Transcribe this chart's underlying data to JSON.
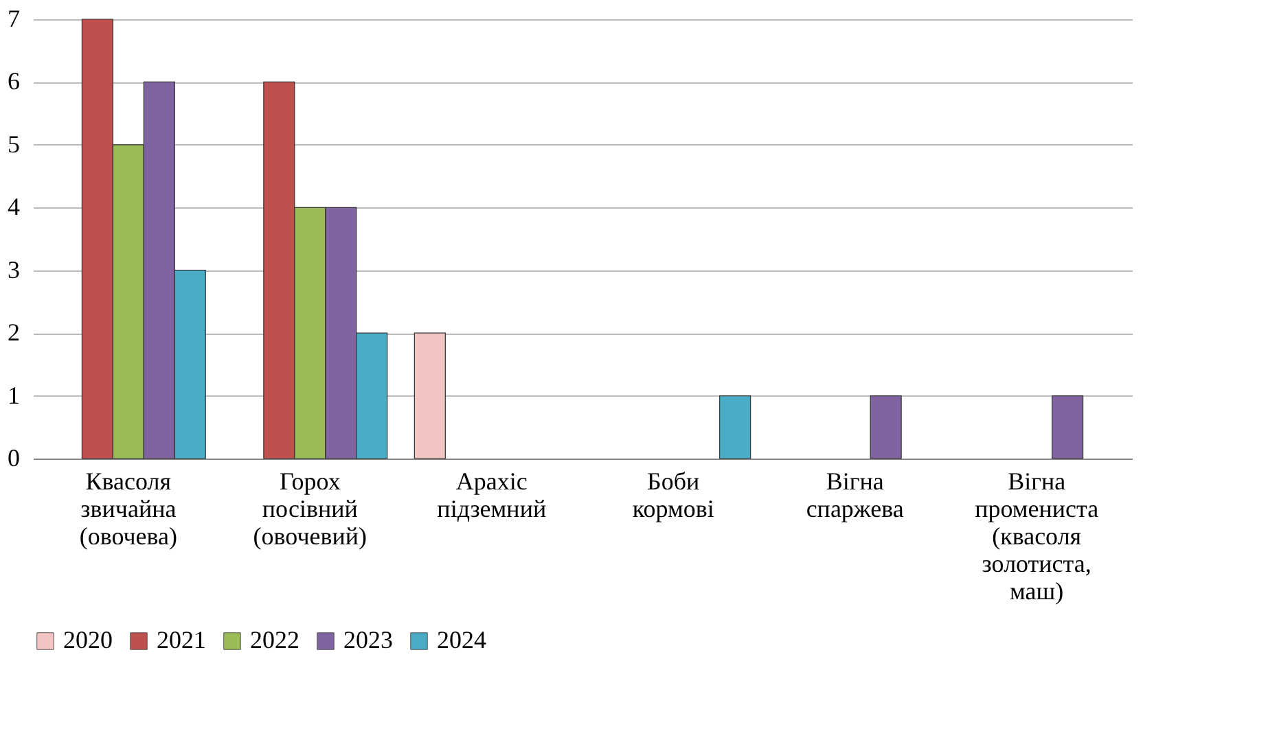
{
  "chart_data": {
    "type": "bar",
    "categories": [
      "Квасоля звичайна (овочева)",
      "Горох посівний (овочевий)",
      "Арахіс підземний",
      "Боби кормові",
      "Вігна спаржева",
      "Вігна промениста (квасоля золотиста, маш)"
    ],
    "series": [
      {
        "name": "2020",
        "color": "#f2c4c4",
        "values": [
          null,
          null,
          2,
          null,
          null,
          null
        ]
      },
      {
        "name": "2021",
        "color": "#c0504d",
        "values": [
          7,
          6,
          null,
          null,
          null,
          null
        ]
      },
      {
        "name": "2022",
        "color": "#9bbb59",
        "values": [
          5,
          4,
          null,
          null,
          null,
          null
        ]
      },
      {
        "name": "2023",
        "color": "#8064a2",
        "values": [
          6,
          4,
          null,
          null,
          1,
          1
        ]
      },
      {
        "name": "2024",
        "color": "#4bacc6",
        "values": [
          3,
          2,
          null,
          1,
          null,
          null
        ]
      }
    ],
    "ylim": [
      0,
      7
    ],
    "yticks": [
      0,
      1,
      2,
      3,
      4,
      5,
      6,
      7
    ],
    "grid": "y",
    "legend": "bottom"
  }
}
